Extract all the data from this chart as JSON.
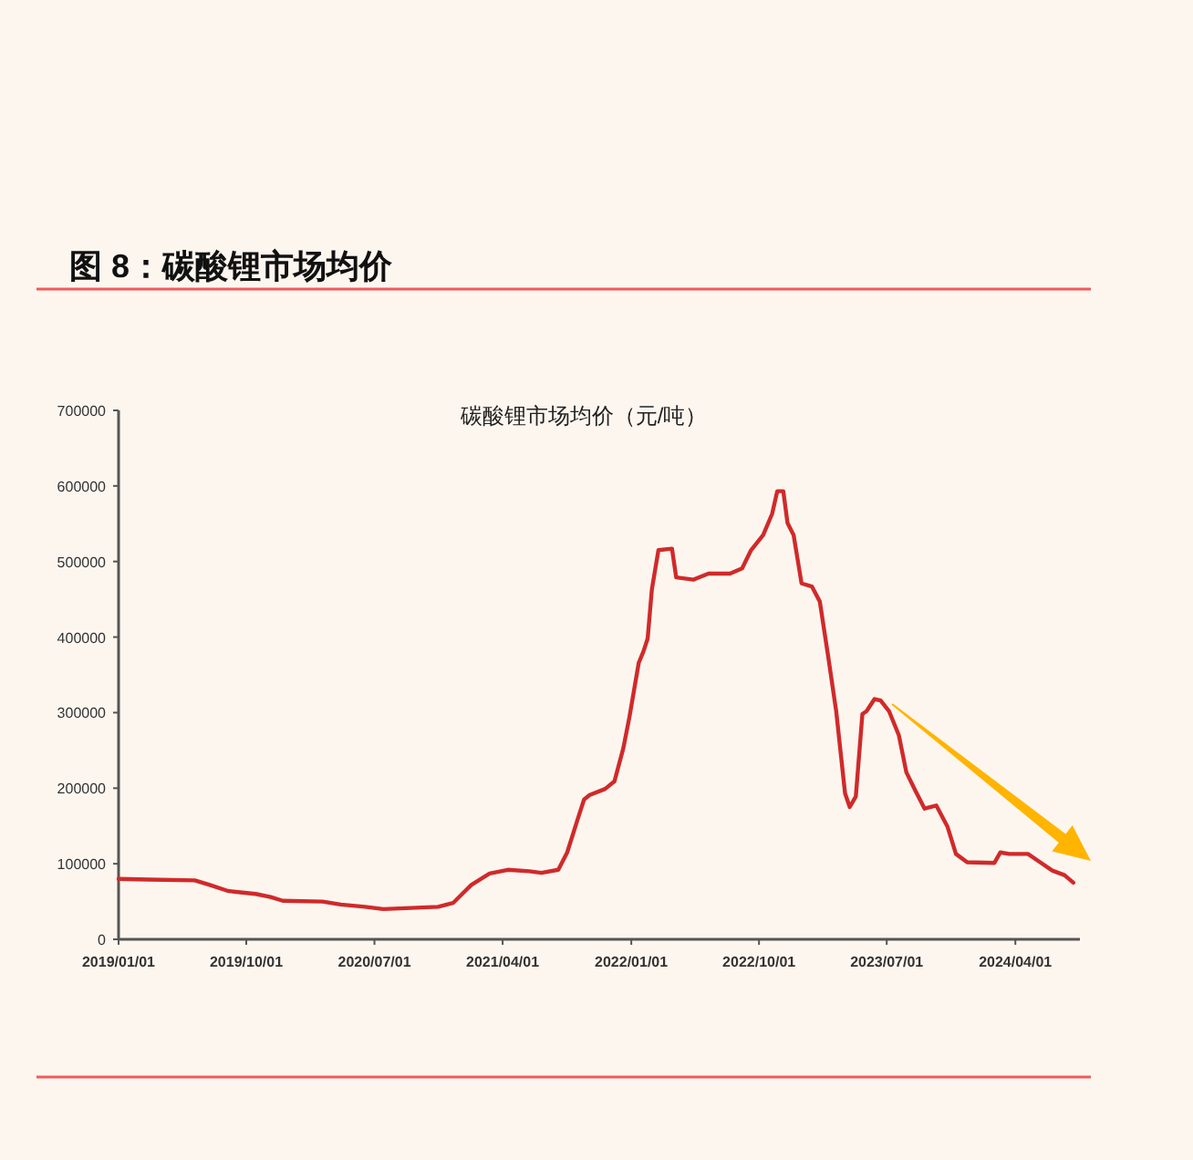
{
  "chart_data": {
    "type": "line",
    "title": "图 8：碳酸锂市场均价",
    "subtitle": "碳酸锂市场均价（元/吨）",
    "x": [
      "2019-01-01",
      "2019-03-07",
      "2019-06-13",
      "2019-07-15",
      "2019-08-23",
      "2019-10-21",
      "2019-11-22",
      "2019-12-18",
      "2020-03-12",
      "2020-04-20",
      "2020-06-11",
      "2020-07-20",
      "2020-11-14",
      "2020-12-16",
      "2021-01-24",
      "2021-03-04",
      "2021-04-12",
      "2021-05-28",
      "2021-06-23",
      "2021-07-29",
      "2021-08-17",
      "2021-09-09",
      "2021-09-22",
      "2021-10-04",
      "2021-11-06",
      "2021-11-26",
      "2021-12-15",
      "2021-12-28",
      "2022-01-17",
      "2022-01-27",
      "2022-02-05",
      "2022-02-14",
      "2022-02-28",
      "2022-03-29",
      "2022-04-07",
      "2022-05-14",
      "2022-06-15",
      "2022-07-31",
      "2022-08-26",
      "2022-09-14",
      "2022-10-10",
      "2022-10-29",
      "2022-11-09",
      "2022-11-22",
      "2022-12-01",
      "2022-12-14",
      "2022-12-31",
      "2023-01-22",
      "2023-02-08",
      "2023-02-26",
      "2023-03-15",
      "2023-04-03",
      "2023-04-13",
      "2023-04-26",
      "2023-05-10",
      "2023-05-19",
      "2023-06-05",
      "2023-06-18",
      "2023-07-06",
      "2023-07-27",
      "2023-08-12",
      "2023-08-31",
      "2023-09-20",
      "2023-10-15",
      "2023-11-08",
      "2023-11-26",
      "2023-12-20",
      "2024-02-16",
      "2024-02-29",
      "2024-03-19",
      "2024-04-28",
      "2024-05-24",
      "2024-06-19",
      "2024-07-15",
      "2024-08-03"
    ],
    "series": [
      {
        "color": "#d02a2a",
        "values": [
          80000,
          79000,
          78000,
          72000,
          64000,
          60000,
          56000,
          51000,
          50000,
          46000,
          43000,
          40000,
          43000,
          48000,
          72000,
          87000,
          92000,
          90000,
          88000,
          92000,
          115000,
          160000,
          185000,
          191000,
          199000,
          209000,
          253000,
          294000,
          366000,
          381000,
          398000,
          463000,
          515000,
          517000,
          479000,
          476000,
          484000,
          484000,
          491000,
          515000,
          535000,
          563000,
          593000,
          593000,
          551000,
          535000,
          471000,
          467000,
          447000,
          374000,
          302000,
          193000,
          175000,
          189000,
          298000,
          302000,
          318000,
          316000,
          302000,
          270000,
          221000,
          197000,
          173000,
          177000,
          149000,
          113000,
          102000,
          101000,
          115000,
          113000,
          113000,
          102000,
          91000,
          85000,
          75000
        ]
      }
    ],
    "xlim": [
      "2019-01-01",
      "2024-08-17"
    ],
    "xticks": [
      {
        "value": "2019-01-01",
        "label": "2019/01/01"
      },
      {
        "value": "2019-10-01",
        "label": "2019/10/01"
      },
      {
        "value": "2020-07-01",
        "label": "2020/07/01"
      },
      {
        "value": "2021-04-01",
        "label": "2021/04/01"
      },
      {
        "value": "2022-01-01",
        "label": "2022/01/01"
      },
      {
        "value": "2022-10-01",
        "label": "2022/10/01"
      },
      {
        "value": "2023-07-01",
        "label": "2023/07/01"
      },
      {
        "value": "2024-04-01",
        "label": "2024/04/01"
      }
    ],
    "ylim": [
      0,
      700000
    ],
    "yticks": [
      0,
      100000,
      200000,
      300000,
      400000,
      500000,
      600000,
      700000
    ],
    "line_style": "solid"
  }
}
